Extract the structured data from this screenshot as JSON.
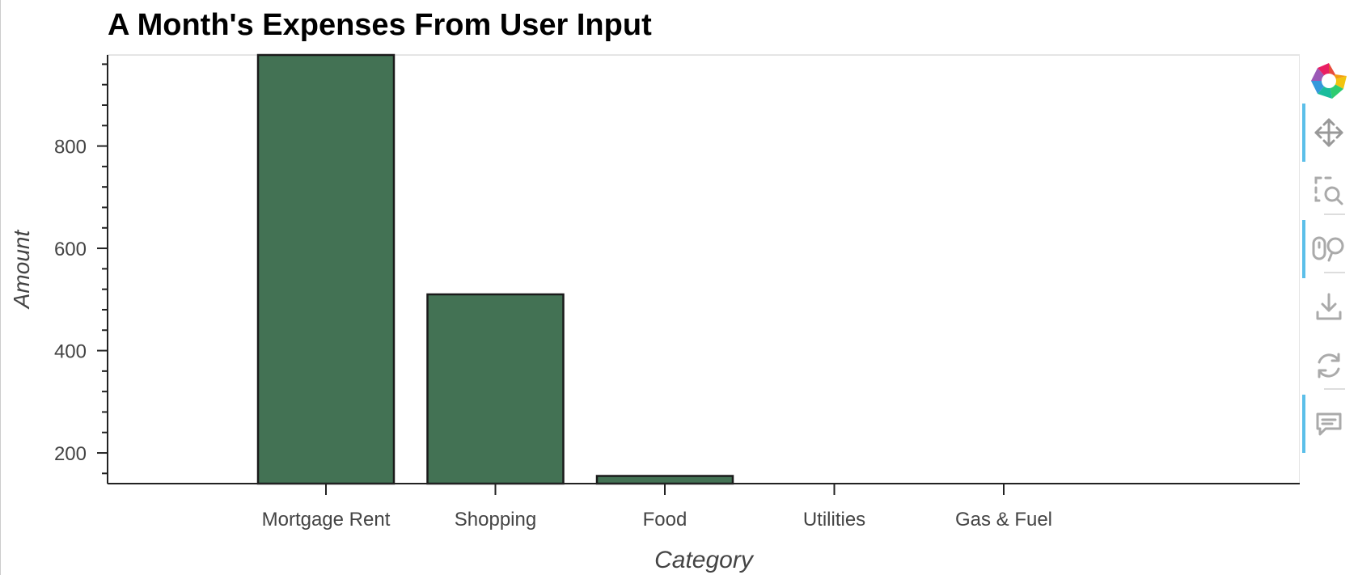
{
  "chart_data": {
    "type": "bar",
    "title": "A Month's Expenses From User Input",
    "xlabel": "Category",
    "ylabel": "Amount",
    "categories": [
      "Mortgage Rent",
      "Shopping",
      "Food",
      "Utilities",
      "Gas & Fuel"
    ],
    "values": [
      985,
      510,
      155,
      138,
      138
    ],
    "ylim": [
      140,
      978
    ],
    "yticks": [
      200,
      400,
      600,
      800
    ],
    "ytick_labels": [
      "200",
      "400",
      "600",
      "800"
    ],
    "grid": false,
    "legend": "none",
    "bar_color": "#437254",
    "bar_edge_color": "#1a1a1a"
  },
  "toolbar": {
    "logo": "bokeh-logo-icon",
    "tools": [
      {
        "icon": "pan-icon",
        "active": true
      },
      {
        "icon": "box-zoom-icon",
        "active": false
      },
      {
        "icon": "wheel-zoom-icon",
        "active": true
      },
      {
        "icon": "save-icon",
        "active": false
      },
      {
        "icon": "reset-icon",
        "active": false
      },
      {
        "icon": "hover-icon",
        "active": true
      }
    ]
  }
}
